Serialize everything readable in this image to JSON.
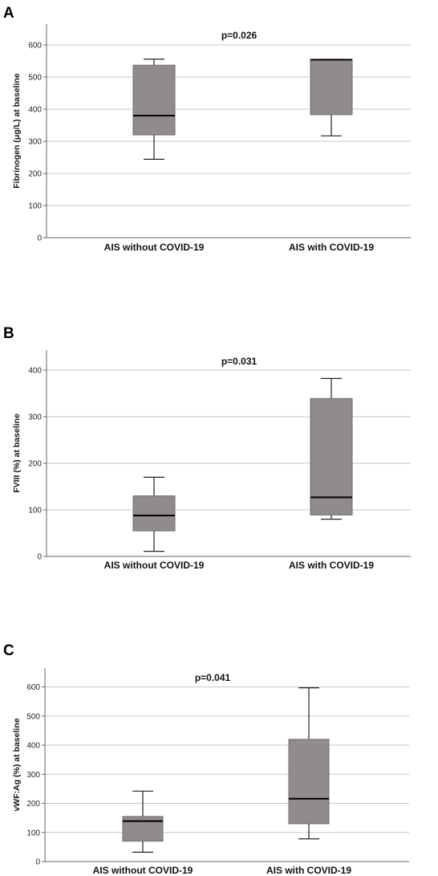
{
  "chart_data": [
    {
      "type": "box",
      "panel": "A",
      "annotation": "p=0.026",
      "ylabel": "Fibrinogen (μg/L) at baseline",
      "ylim": [
        0,
        665
      ],
      "yticks": [
        0,
        100,
        200,
        300,
        400,
        500,
        600
      ],
      "grid": true,
      "categories": [
        "AIS without COVID-19",
        "AIS with COVID-19"
      ],
      "boxes": [
        {
          "min": 244,
          "q1": 320,
          "median": 380,
          "q3": 537,
          "max": 556
        },
        {
          "min": 317,
          "q1": 383,
          "median": 554,
          "q3": 555,
          "max": 555
        }
      ]
    },
    {
      "type": "box",
      "panel": "B",
      "annotation": "p=0.031",
      "ylabel": "FVIII (%) at baseline",
      "ylim": [
        0,
        443
      ],
      "yticks": [
        0,
        100,
        200,
        300,
        400
      ],
      "grid": true,
      "categories": [
        "AIS without COVID-19",
        "AIS with COVID-19"
      ],
      "boxes": [
        {
          "min": 11,
          "q1": 55,
          "median": 88,
          "q3": 130,
          "max": 170
        },
        {
          "min": 80,
          "q1": 89,
          "median": 127,
          "q3": 339,
          "max": 382
        }
      ]
    },
    {
      "type": "box",
      "panel": "C",
      "annotation": "p=0.041",
      "ylabel": "vWF:Ag (%) at baseline",
      "ylim": [
        0,
        665
      ],
      "yticks": [
        0,
        100,
        200,
        300,
        400,
        500,
        600
      ],
      "grid": true,
      "categories": [
        "AIS without COVID-19",
        "AIS with COVID-19"
      ],
      "boxes": [
        {
          "min": 32,
          "q1": 70,
          "median": 139,
          "q3": 155,
          "max": 242
        },
        {
          "min": 78,
          "q1": 130,
          "median": 216,
          "q3": 420,
          "max": 597
        }
      ]
    }
  ]
}
